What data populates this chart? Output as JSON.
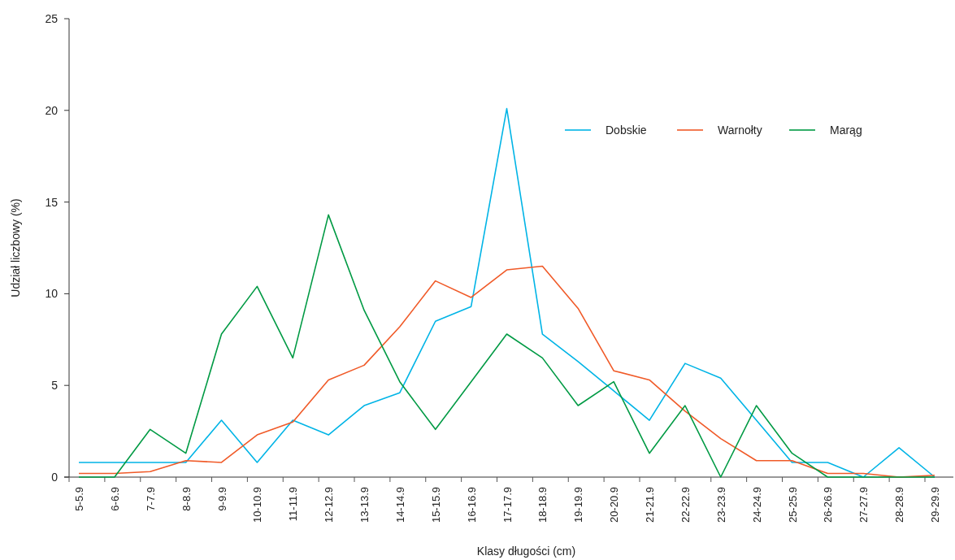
{
  "chart_data": {
    "type": "line",
    "xlabel": "Klasy długości (cm)",
    "ylabel": "Udział liczbowy (%)",
    "categories": [
      "5-5.9",
      "6-6.9",
      "7-7.9",
      "8-8.9",
      "9-9.9",
      "10-10.9",
      "11-11.9",
      "12-12.9",
      "13-13.9",
      "14-14.9",
      "15-15.9",
      "16-16.9",
      "17-17.9",
      "18-18.9",
      "19-19.9",
      "20-20.9",
      "21-21.9",
      "22-22.9",
      "23-23.9",
      "24-24.9",
      "25-25.9",
      "26-26.9",
      "27-27.9",
      "28-28.9",
      "29-29.9"
    ],
    "series": [
      {
        "name": "Dobskie",
        "color": "#00b4e6",
        "values": [
          0.8,
          0.8,
          0.8,
          0.8,
          3.1,
          0.8,
          3.1,
          2.3,
          3.9,
          4.6,
          8.5,
          9.3,
          20.1,
          7.8,
          6.3,
          4.7,
          3.1,
          6.2,
          5.4,
          3.1,
          0.8,
          0.8,
          0,
          1.6,
          0
        ]
      },
      {
        "name": "Warnołty",
        "color": "#f05a28",
        "values": [
          0.2,
          0.2,
          0.3,
          0.9,
          0.8,
          2.3,
          3.0,
          5.3,
          6.1,
          8.2,
          10.7,
          9.8,
          11.3,
          11.5,
          9.2,
          5.8,
          5.3,
          3.6,
          2.1,
          0.9,
          0.9,
          0.2,
          0.2,
          0,
          0.1
        ]
      },
      {
        "name": "Marąg",
        "color": "#009a44",
        "values": [
          0,
          0,
          2.6,
          1.3,
          7.8,
          10.4,
          6.5,
          14.3,
          9.1,
          5.2,
          2.6,
          5.2,
          7.8,
          6.5,
          3.9,
          5.2,
          1.3,
          3.9,
          0,
          3.9,
          1.3,
          0,
          0,
          0,
          0
        ]
      }
    ],
    "ylim": [
      0,
      25
    ],
    "yticks": [
      0,
      5,
      10,
      15,
      20,
      25
    ],
    "grid": false,
    "legend": "top right",
    "marker": "none",
    "line_style": "solid"
  }
}
